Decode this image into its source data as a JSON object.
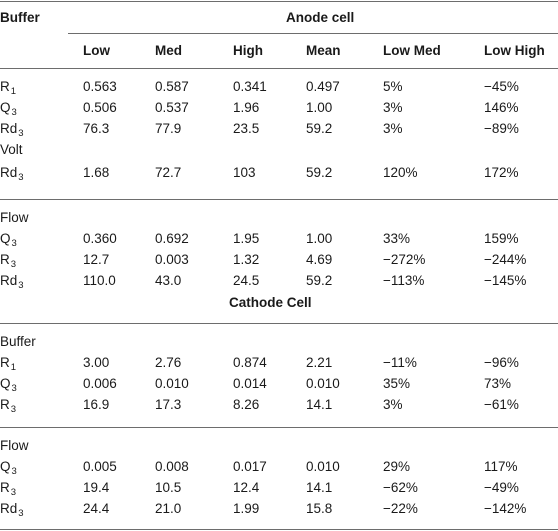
{
  "header": {
    "buffer_label": "Buffer",
    "anode_title": "Anode cell",
    "columns": [
      "Low",
      "Med",
      "High",
      "Mean",
      "Low Med",
      "Low High"
    ]
  },
  "anode": {
    "buffer_rows": [
      {
        "label": "R",
        "sub": "1",
        "values": [
          "0.563",
          "0.587",
          "0.341",
          "0.497",
          "5%",
          "−45%"
        ]
      },
      {
        "label": "Q",
        "sub": "3",
        "values": [
          "0.506",
          "0.537",
          "1.96",
          "1.00",
          "3%",
          "146%"
        ]
      },
      {
        "label": "Rd",
        "sub": "3",
        "values": [
          "76.3",
          "77.9",
          "23.5",
          "59.2",
          "3%",
          "−89%"
        ]
      }
    ],
    "volt_label": "Volt",
    "volt_rows": [
      {
        "label": "Rd",
        "sub": "3",
        "values": [
          "1.68",
          "72.7",
          "103",
          "59.2",
          "120%",
          "172%"
        ]
      }
    ],
    "flow_label": "Flow",
    "flow_rows": [
      {
        "label": "Q",
        "sub": "3",
        "values": [
          "0.360",
          "0.692",
          "1.95",
          "1.00",
          "33%",
          "159%"
        ]
      },
      {
        "label": "R",
        "sub": "3",
        "values": [
          "12.7",
          "0.003",
          "1.32",
          "4.69",
          "−272%",
          "−244%"
        ]
      },
      {
        "label": "Rd",
        "sub": "3",
        "values": [
          "110.0",
          "43.0",
          "24.5",
          "59.2",
          "−113%",
          "−145%"
        ]
      }
    ]
  },
  "cathode": {
    "title": "Cathode Cell",
    "buffer_label": "Buffer",
    "buffer_rows": [
      {
        "label": "R",
        "sub": "1",
        "values": [
          "3.00",
          "2.76",
          "0.874",
          "2.21",
          "−11%",
          "−96%"
        ]
      },
      {
        "label": "Q",
        "sub": "3",
        "values": [
          "0.006",
          "0.010",
          "0.014",
          "0.010",
          "35%",
          "73%"
        ]
      },
      {
        "label": "R",
        "sub": "3",
        "values": [
          "16.9",
          "17.3",
          "8.26",
          "14.1",
          "3%",
          "−61%"
        ]
      }
    ],
    "flow_label": "Flow",
    "flow_rows": [
      {
        "label": "Q",
        "sub": "3",
        "values": [
          "0.005",
          "0.008",
          "0.017",
          "0.010",
          "29%",
          "117%"
        ]
      },
      {
        "label": "R",
        "sub": "3",
        "values": [
          "19.4",
          "10.5",
          "12.4",
          "14.1",
          "−62%",
          "−49%"
        ]
      },
      {
        "label": "Rd",
        "sub": "3",
        "values": [
          "24.4",
          "21.0",
          "1.99",
          "15.8",
          "−22%",
          "−142%"
        ]
      }
    ]
  }
}
